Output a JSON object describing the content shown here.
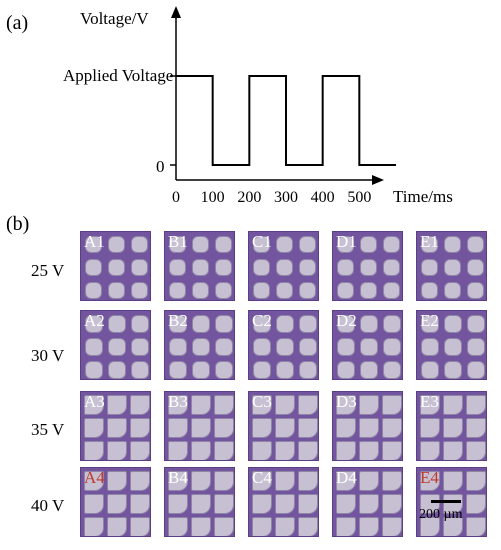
{
  "panel_a": {
    "label": "(a)",
    "ylabel": "Voltage/V",
    "xlabel": "Time/ms",
    "y_tick_high": "Applied Voltage",
    "y_tick_zero": "0",
    "x_ticks": [
      "0",
      "100",
      "200",
      "300",
      "400",
      "500"
    ]
  },
  "chart_data": {
    "type": "line",
    "xlabel": "Time/ms",
    "ylabel": "Voltage/V",
    "x": [
      0,
      100,
      100,
      200,
      200,
      300,
      300,
      400,
      400,
      500,
      500,
      600
    ],
    "y": [
      1,
      1,
      0,
      0,
      1,
      1,
      0,
      0,
      1,
      1,
      0,
      0
    ],
    "xlim": [
      0,
      600
    ],
    "ylim": [
      0,
      1.4
    ],
    "x_ticks": [
      0,
      100,
      200,
      300,
      400,
      500
    ],
    "y_ticks": [
      "0",
      "Applied Voltage"
    ],
    "grid": false
  },
  "panel_b": {
    "label": "(b)",
    "rows": [
      {
        "voltage": "25 V",
        "tiles": [
          "A1",
          "B1",
          "C1",
          "D1",
          "E1"
        ]
      },
      {
        "voltage": "30 V",
        "tiles": [
          "A2",
          "B2",
          "C2",
          "D2",
          "E2"
        ]
      },
      {
        "voltage": "35 V",
        "tiles": [
          "A3",
          "B3",
          "C3",
          "D3",
          "E3"
        ]
      },
      {
        "voltage": "40 V",
        "tiles": [
          "A4",
          "B4",
          "C4",
          "D4",
          "E4"
        ]
      }
    ],
    "highlight_color": "#c0392b",
    "highlighted_tiles": [
      "A4",
      "E4"
    ],
    "scale_bar": "200 µm"
  }
}
